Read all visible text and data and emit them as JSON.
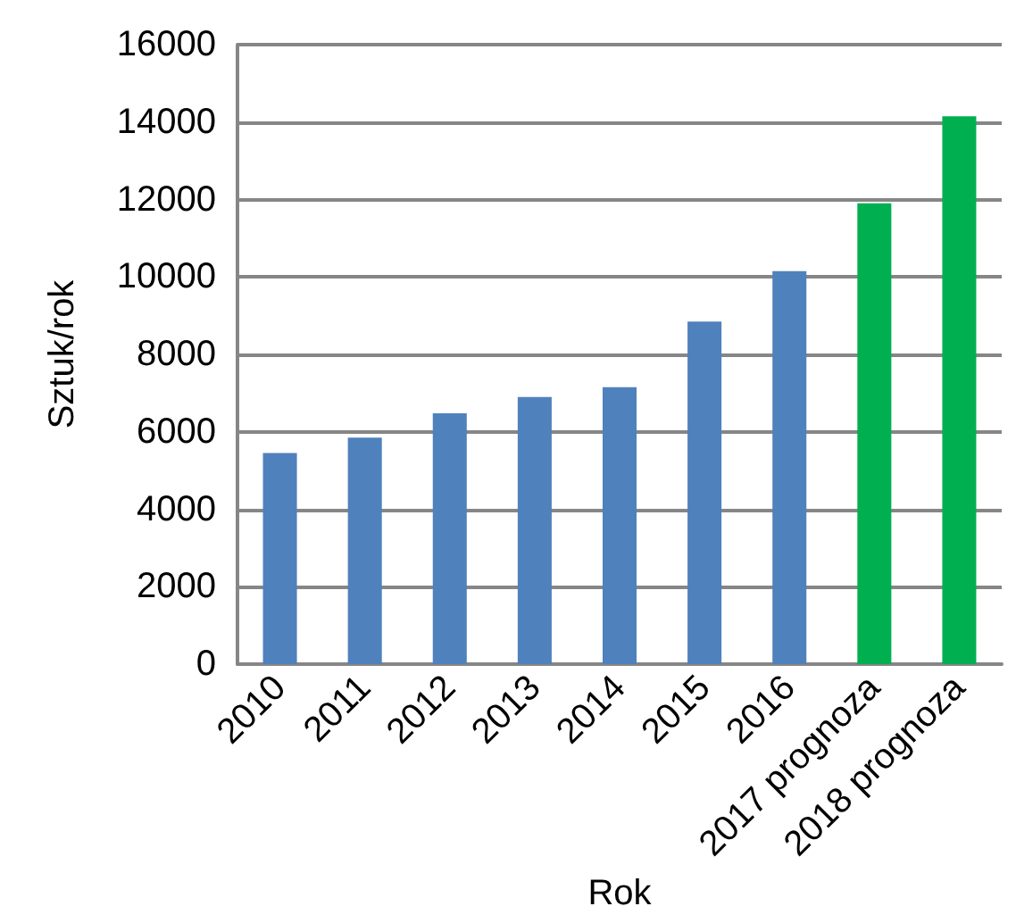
{
  "chart_data": {
    "type": "bar",
    "xlabel": "Rok",
    "ylabel": "Sztuk/rok",
    "categories": [
      "2010",
      "2011",
      "2012",
      "2013",
      "2014",
      "2015",
      "2016",
      "2017 prognoza",
      "2018 prognoza"
    ],
    "values": [
      5450,
      5850,
      6480,
      6900,
      7150,
      8850,
      10150,
      11900,
      14150
    ],
    "colors": [
      "#4f81bd",
      "#4f81bd",
      "#4f81bd",
      "#4f81bd",
      "#4f81bd",
      "#4f81bd",
      "#4f81bd",
      "#00b050",
      "#00b050"
    ],
    "ylim": [
      0,
      16000
    ],
    "yticks": [
      0,
      2000,
      4000,
      6000,
      8000,
      10000,
      12000,
      14000,
      16000
    ],
    "grid": "y"
  }
}
